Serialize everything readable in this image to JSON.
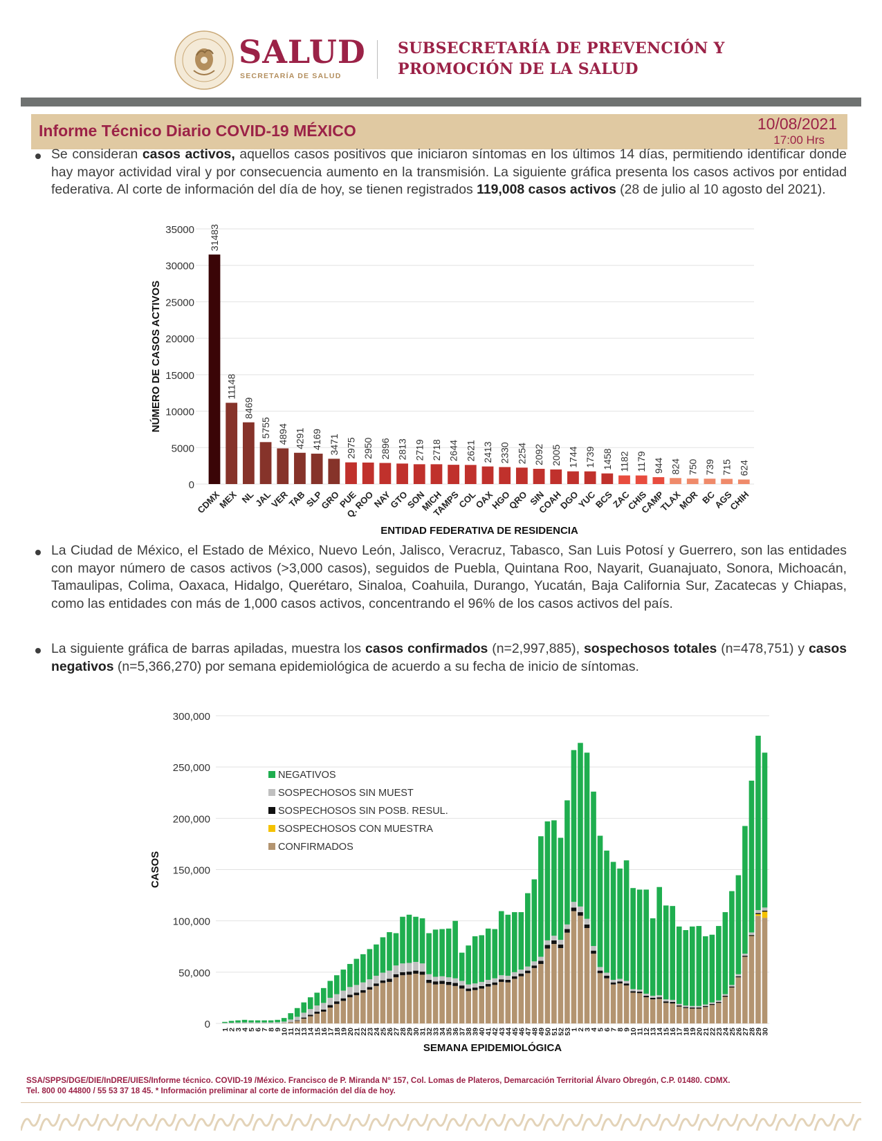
{
  "header": {
    "brand": "SALUD",
    "brand_sub": "SECRETARÍA DE SALUD",
    "seal_text": "ESTADOS UNIDOS MEXICANOS",
    "org_line1": "SUBSECRETARÍA DE PREVENCIÓN Y",
    "org_line2": "PROMOCIÓN DE LA SALUD"
  },
  "title_band": {
    "title": "Informe Técnico Diario COVID-19 MÉXICO",
    "date": "10/08/2021",
    "time": "17:00 Hrs"
  },
  "paragraphs": {
    "p1": [
      {
        "text": "Se consideran ",
        "bold": false
      },
      {
        "text": "casos activos,",
        "bold": true
      },
      {
        "text": " aquellos casos positivos que iniciaron síntomas en los últimos 14 días, permitiendo identificar donde hay mayor actividad viral y por consecuencia aumento en la transmisión. La siguiente gráfica presenta los casos activos por entidad federativa. Al corte de información del día de hoy, se tienen registrados ",
        "bold": false
      },
      {
        "text": "119,008 casos activos",
        "bold": true
      },
      {
        "text": " (28 de julio al 10 agosto del 2021).",
        "bold": false
      }
    ],
    "p2": [
      {
        "text": "La Ciudad de México, el Estado de México, Nuevo León, Jalisco, Veracruz, Tabasco, San Luis Potosí y Guerrero, son las entidades con mayor número de casos activos (>3,000 casos), seguidos de Puebla, Quintana Roo, Nayarit, Guanajuato, Sonora, Michoacán, Tamaulipas, Colima, Oaxaca, Hidalgo, Querétaro, Sinaloa, Coahuila, Durango, Yucatán, Baja California Sur, Zacatecas y Chiapas, como las entidades con más de 1,000 casos activos, concentrando el 96% de los casos activos del país.",
        "bold": false
      }
    ],
    "p3": [
      {
        "text": "La siguiente gráfica de barras apiladas, muestra los ",
        "bold": false
      },
      {
        "text": "casos confirmados",
        "bold": true
      },
      {
        "text": " (n=2,997,885), ",
        "bold": false
      },
      {
        "text": "sospechosos totales",
        "bold": true
      },
      {
        "text": " (n=478,751) y ",
        "bold": false
      },
      {
        "text": "casos negativos",
        "bold": true
      },
      {
        "text": " (n=5,366,270) por semana epidemiológica de acuerdo a su fecha de inicio de síntomas.",
        "bold": false
      }
    ]
  },
  "chart_data": [
    {
      "type": "bar",
      "xlabel": "ENTIDAD FEDERATIVA DE RESIDENCIA",
      "ylabel": "NÚMERO DE CASOS ACTIVOS",
      "ylim": [
        0,
        35000
      ],
      "yticks": [
        0,
        5000,
        10000,
        15000,
        20000,
        25000,
        30000,
        35000
      ],
      "grid": true,
      "categories": [
        "CDMX",
        "MEX",
        "NL",
        "JAL",
        "VER",
        "TAB",
        "SLP",
        "GRO",
        "PUE",
        "Q. ROO",
        "NAY",
        "GTO",
        "SON",
        "MICH",
        "TAMPS",
        "COL",
        "OAX",
        "HGO",
        "QRO",
        "SIN",
        "COAH",
        "DGO",
        "YUC",
        "BCS",
        "ZAC",
        "CHIS",
        "CAMP",
        "TLAX",
        "MOR",
        "BC",
        "AGS",
        "CHIH"
      ],
      "values": [
        31483,
        11148,
        8469,
        5755,
        4894,
        4291,
        4169,
        3471,
        2975,
        2950,
        2896,
        2813,
        2719,
        2718,
        2644,
        2621,
        2413,
        2330,
        2254,
        2092,
        2005,
        1744,
        1739,
        1458,
        1182,
        1179,
        944,
        824,
        750,
        739,
        715,
        624
      ],
      "colors": [
        "#3a0507",
        "#86332a",
        "#86332a",
        "#86332a",
        "#86332a",
        "#86332a",
        "#86332a",
        "#86332a",
        "#c0312c",
        "#c0312c",
        "#c0312c",
        "#c0312c",
        "#c0312c",
        "#c0312c",
        "#c0312c",
        "#c0312c",
        "#c0312c",
        "#c0312c",
        "#c0312c",
        "#c0312c",
        "#c0312c",
        "#c0312c",
        "#c0312c",
        "#c0312c",
        "#e84c3e",
        "#e84c3e",
        "#e84c3e",
        "#ef8a6a",
        "#ef8a6a",
        "#ef8a6a",
        "#ef8a6a",
        "#ef8a6a"
      ]
    },
    {
      "type": "bar",
      "stacked": true,
      "xlabel": "SEMANA EPIDEMIOLÓGICA",
      "ylabel": "CASOS",
      "ylim": [
        0,
        300000
      ],
      "yticks": [
        0,
        50000,
        100000,
        150000,
        200000,
        250000,
        300000
      ],
      "ytick_labels": [
        "0",
        "50,000",
        "100,000",
        "150,000",
        "200,000",
        "250,000",
        "300,000"
      ],
      "grid": true,
      "legend_position": "upper-left",
      "categories": [
        "1",
        "2",
        "3",
        "4",
        "5",
        "6",
        "7",
        "8",
        "9",
        "10",
        "11",
        "12",
        "13",
        "14",
        "15",
        "16",
        "17",
        "18",
        "19",
        "20",
        "21",
        "22",
        "23",
        "24",
        "25",
        "26",
        "27",
        "28",
        "29",
        "30",
        "31",
        "32",
        "33",
        "34",
        "35",
        "36",
        "37",
        "38",
        "39",
        "40",
        "41",
        "42",
        "43",
        "44",
        "45",
        "46",
        "47",
        "48",
        "49",
        "50",
        "51",
        "52",
        "53",
        "1",
        "2",
        "3",
        "4",
        "5",
        "6",
        "7",
        "8",
        "9",
        "10",
        "11",
        "12",
        "13",
        "14",
        "15",
        "16",
        "17",
        "18",
        "19",
        "20",
        "21",
        "22",
        "23",
        "24",
        "25",
        "26",
        "27",
        "28",
        "29",
        "30"
      ],
      "series": [
        {
          "name": "CONFIRMADOS",
          "color": "#b39470",
          "values": [
            0,
            0,
            0,
            0,
            0,
            0,
            0,
            0,
            0,
            300,
            1200,
            2500,
            4700,
            7000,
            9500,
            11500,
            15500,
            19000,
            22000,
            25500,
            27500,
            30000,
            33000,
            36500,
            39500,
            40500,
            45000,
            47000,
            47500,
            48500,
            47500,
            39500,
            38000,
            38500,
            37500,
            36500,
            34000,
            31500,
            32500,
            34000,
            36000,
            37500,
            40500,
            40000,
            43500,
            46000,
            49000,
            54000,
            58000,
            73000,
            77500,
            73500,
            88500,
            109500,
            105000,
            93000,
            68000,
            49000,
            44000,
            38000,
            39000,
            37000,
            30000,
            29500,
            25500,
            23500,
            24000,
            20000,
            19500,
            16500,
            15000,
            14500,
            14500,
            16000,
            18000,
            20000,
            26000,
            35000,
            45000,
            65000,
            85000,
            105000,
            103000
          ]
        },
        {
          "name": "SOSPECHOSOS CON MUESTRA",
          "color": "#f5c200",
          "values": [
            0,
            0,
            0,
            0,
            0,
            0,
            0,
            0,
            0,
            0,
            0,
            0,
            0,
            0,
            0,
            0,
            0,
            0,
            0,
            0,
            0,
            0,
            0,
            0,
            0,
            0,
            0,
            0,
            0,
            0,
            0,
            0,
            0,
            0,
            0,
            0,
            0,
            0,
            0,
            0,
            0,
            0,
            0,
            0,
            0,
            0,
            0,
            0,
            0,
            0,
            0,
            0,
            0,
            0,
            0,
            0,
            0,
            0,
            0,
            0,
            0,
            0,
            0,
            0,
            0,
            0,
            0,
            0,
            0,
            0,
            0,
            0,
            0,
            0,
            0,
            0,
            0,
            0,
            0,
            0,
            200,
            1500,
            6000
          ]
        },
        {
          "name": "SOSPECHOSOS SIN POSB. RESUL.",
          "color": "#111111",
          "values": [
            0,
            0,
            0,
            0,
            0,
            0,
            0,
            0,
            0,
            0,
            300,
            500,
            1000,
            1500,
            2000,
            2000,
            2500,
            2500,
            2500,
            2500,
            2500,
            2500,
            2500,
            2500,
            2500,
            3000,
            3000,
            3000,
            3000,
            3000,
            3000,
            3000,
            3000,
            3000,
            3000,
            3000,
            3000,
            2500,
            2500,
            2500,
            2500,
            2500,
            2500,
            2500,
            2500,
            2500,
            2500,
            2500,
            3000,
            3500,
            3500,
            3500,
            3500,
            3500,
            3500,
            3500,
            3000,
            2500,
            2500,
            2000,
            2000,
            2000,
            1500,
            1500,
            1500,
            1500,
            1500,
            1500,
            1500,
            1000,
            1000,
            1000,
            1000,
            1000,
            1000,
            1000,
            1000,
            1000,
            1000,
            1000,
            1000,
            1000,
            1000
          ]
        },
        {
          "name": "SOSPECHOSOS SIN MUEST",
          "color": "#c0c0c0",
          "values": [
            500,
            700,
            900,
            1000,
            1000,
            900,
            1000,
            1000,
            1200,
            1500,
            2300,
            3500,
            4800,
            5500,
            6000,
            6500,
            7000,
            7000,
            7500,
            7500,
            7500,
            7500,
            7500,
            7500,
            7500,
            8000,
            8500,
            8500,
            8500,
            8500,
            8000,
            5500,
            4500,
            4500,
            4500,
            4500,
            4500,
            4000,
            4000,
            4000,
            4000,
            4000,
            4000,
            4000,
            4000,
            4000,
            4000,
            4000,
            4000,
            4500,
            4500,
            4500,
            4500,
            5500,
            5500,
            5500,
            4500,
            3500,
            3000,
            2500,
            2500,
            2500,
            2000,
            2000,
            2000,
            2000,
            2000,
            2000,
            2000,
            1500,
            1500,
            1500,
            1500,
            1500,
            1500,
            1500,
            1500,
            1500,
            2000,
            2000,
            2500,
            3000,
            3000
          ]
        },
        {
          "name": "NEGATIVOS",
          "color": "#1fae4f",
          "values": [
            1000,
            1800,
            2100,
            2500,
            2000,
            2100,
            2000,
            2000,
            2300,
            3500,
            6200,
            8500,
            10000,
            11500,
            12500,
            14500,
            16500,
            18500,
            20500,
            22500,
            25500,
            27500,
            29500,
            30500,
            34500,
            37500,
            31500,
            45500,
            47000,
            44000,
            44000,
            40000,
            46000,
            46000,
            47500,
            56000,
            27500,
            38000,
            46000,
            45500,
            50000,
            48000,
            62500,
            59500,
            58500,
            56000,
            71500,
            80000,
            117500,
            116000,
            112500,
            99500,
            121000,
            148000,
            159500,
            162000,
            150500,
            128000,
            119000,
            115000,
            107500,
            117500,
            98500,
            97500,
            101500,
            75500,
            105500,
            91500,
            91500,
            75500,
            73500,
            77500,
            78000,
            66500,
            66000,
            72500,
            80000,
            91500,
            96500,
            124500,
            148000,
            170000,
            151000
          ]
        }
      ]
    }
  ],
  "footer": {
    "line1": "SSA/SPPS/DGE/DIE/InDRE/UIES/Informe técnico. COVID-19 /México. Francisco de P. Miranda N° 157, Col. Lomas de Plateros, Demarcación Territorial Álvaro Obregón, C.P. 01480. CDMX.",
    "line2": "Tel. 800 00 44800 / 55 53 37 18 45. * Información preliminar al corte de información del día de hoy."
  },
  "colors": {
    "brand": "#9b2247",
    "gold": "#b38e5d",
    "title_band": "#e0c9a2",
    "gray_bar": "#6f7271"
  }
}
